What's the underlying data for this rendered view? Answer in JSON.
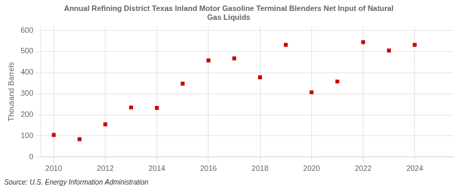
{
  "chart_data": {
    "type": "scatter",
    "title": "Annual Refining District Texas Inland Motor Gasoline Terminal Blenders Net Input of Natural\nGas Liquids",
    "y_label": "Thousand Barrels",
    "annotation": "Source: U.S. Energy Information Administration",
    "x": [
      2010,
      2011,
      2012,
      2013,
      2014,
      2015,
      2016,
      2017,
      2018,
      2019,
      2020,
      2021,
      2022,
      2023,
      2024
    ],
    "values": [
      105,
      85,
      155,
      235,
      233,
      348,
      458,
      468,
      378,
      532,
      307,
      358,
      545,
      505,
      532
    ],
    "color": "#cc0000",
    "marker": "square",
    "xlim": [
      2009.5,
      2025.5
    ],
    "xticks": [
      2010,
      2012,
      2014,
      2016,
      2018,
      2020,
      2022,
      2024
    ],
    "ylim": [
      0,
      620
    ],
    "yticks": [
      0,
      100,
      200,
      300,
      400,
      500,
      600
    ],
    "grid": true
  }
}
